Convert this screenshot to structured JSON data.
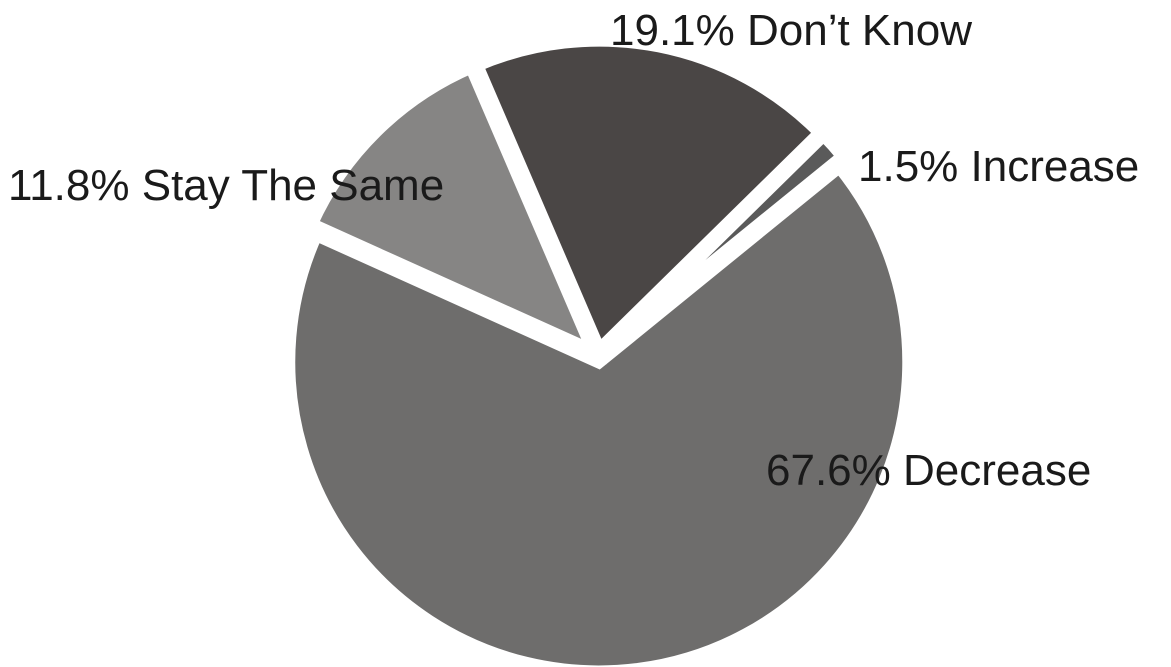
{
  "chart_data": {
    "type": "pie",
    "title": "",
    "slices": [
      {
        "label": "Increase",
        "value": 1.5,
        "display": "1.5% Increase",
        "color": "#5a5a5a"
      },
      {
        "label": "Decrease",
        "value": 67.6,
        "display": "67.6% Decrease",
        "color": "#6e6d6c"
      },
      {
        "label": "Stay The Same",
        "value": 11.8,
        "display": "11.8% Stay The Same",
        "color": "#868584"
      },
      {
        "label": "Don’t Know",
        "value": 19.1,
        "display": "19.1% Don’t Know",
        "color": "#4a4645"
      }
    ],
    "legend": "none",
    "labels": "outside-slices"
  }
}
